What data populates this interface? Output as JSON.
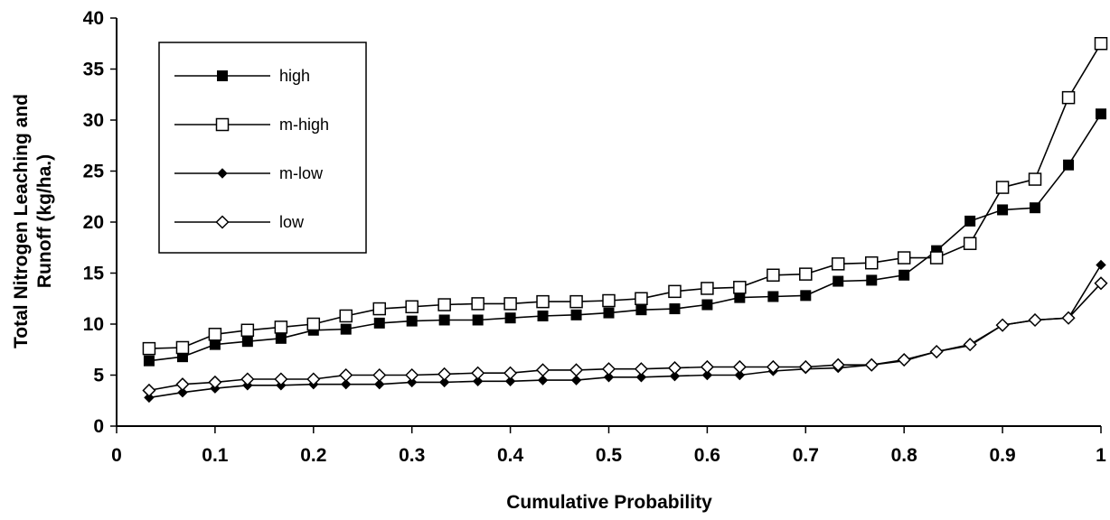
{
  "chart_data": {
    "type": "line",
    "title": "",
    "xlabel": "Cumulative Probability",
    "ylabel_lines": [
      "Total Nitrogen Leaching and",
      "Runoff (kg/ha.)"
    ],
    "xlim": [
      0,
      1
    ],
    "ylim": [
      0,
      40
    ],
    "xticks": [
      0,
      0.1,
      0.2,
      0.3,
      0.4,
      0.5,
      0.6,
      0.7,
      0.8,
      0.9,
      1
    ],
    "xtick_labels": [
      "0",
      "0.1",
      "0.2",
      "0.3",
      "0.4",
      "0.5",
      "0.6",
      "0.7",
      "0.8",
      "0.9",
      "1"
    ],
    "yticks": [
      0,
      5,
      10,
      15,
      20,
      25,
      30,
      35,
      40
    ],
    "ytick_labels": [
      "0",
      "5",
      "10",
      "15",
      "20",
      "25",
      "30",
      "35",
      "40"
    ],
    "grid": false,
    "legend_position": "top-left",
    "x": [
      0.033,
      0.067,
      0.1,
      0.133,
      0.167,
      0.2,
      0.233,
      0.267,
      0.3,
      0.333,
      0.367,
      0.4,
      0.433,
      0.467,
      0.5,
      0.533,
      0.567,
      0.6,
      0.633,
      0.667,
      0.7,
      0.733,
      0.767,
      0.8,
      0.833,
      0.867,
      0.9,
      0.933,
      0.967,
      1.0
    ],
    "series": [
      {
        "name": "high",
        "marker": "filled-square",
        "values": [
          6.4,
          6.8,
          8.0,
          8.3,
          8.6,
          9.4,
          9.5,
          10.1,
          10.3,
          10.4,
          10.4,
          10.6,
          10.8,
          10.9,
          11.1,
          11.4,
          11.5,
          11.9,
          12.6,
          12.7,
          12.8,
          14.2,
          14.3,
          14.8,
          17.2,
          20.1,
          21.2,
          21.4,
          25.6,
          30.6
        ]
      },
      {
        "name": "m-high",
        "marker": "open-square",
        "values": [
          7.6,
          7.7,
          9.0,
          9.4,
          9.7,
          10.0,
          10.8,
          11.5,
          11.7,
          11.9,
          12.0,
          12.0,
          12.2,
          12.2,
          12.3,
          12.5,
          13.2,
          13.5,
          13.6,
          14.8,
          14.9,
          15.9,
          16.0,
          16.5,
          16.5,
          17.9,
          23.4,
          24.2,
          32.2,
          37.5
        ]
      },
      {
        "name": "m-low",
        "marker": "filled-diamond",
        "values": [
          2.8,
          3.3,
          3.7,
          4.0,
          4.0,
          4.1,
          4.1,
          4.1,
          4.3,
          4.3,
          4.4,
          4.4,
          4.5,
          4.5,
          4.8,
          4.8,
          4.9,
          5.0,
          5.0,
          5.4,
          5.6,
          5.7,
          6.0,
          6.4,
          7.3,
          7.9,
          9.9,
          10.4,
          10.6,
          15.8
        ]
      },
      {
        "name": "low",
        "marker": "open-diamond",
        "values": [
          3.5,
          4.1,
          4.3,
          4.6,
          4.6,
          4.6,
          5.0,
          5.0,
          5.0,
          5.1,
          5.2,
          5.2,
          5.5,
          5.5,
          5.6,
          5.6,
          5.7,
          5.8,
          5.8,
          5.8,
          5.8,
          6.0,
          6.0,
          6.5,
          7.3,
          8.0,
          9.9,
          10.4,
          10.6,
          14.0
        ]
      }
    ]
  }
}
